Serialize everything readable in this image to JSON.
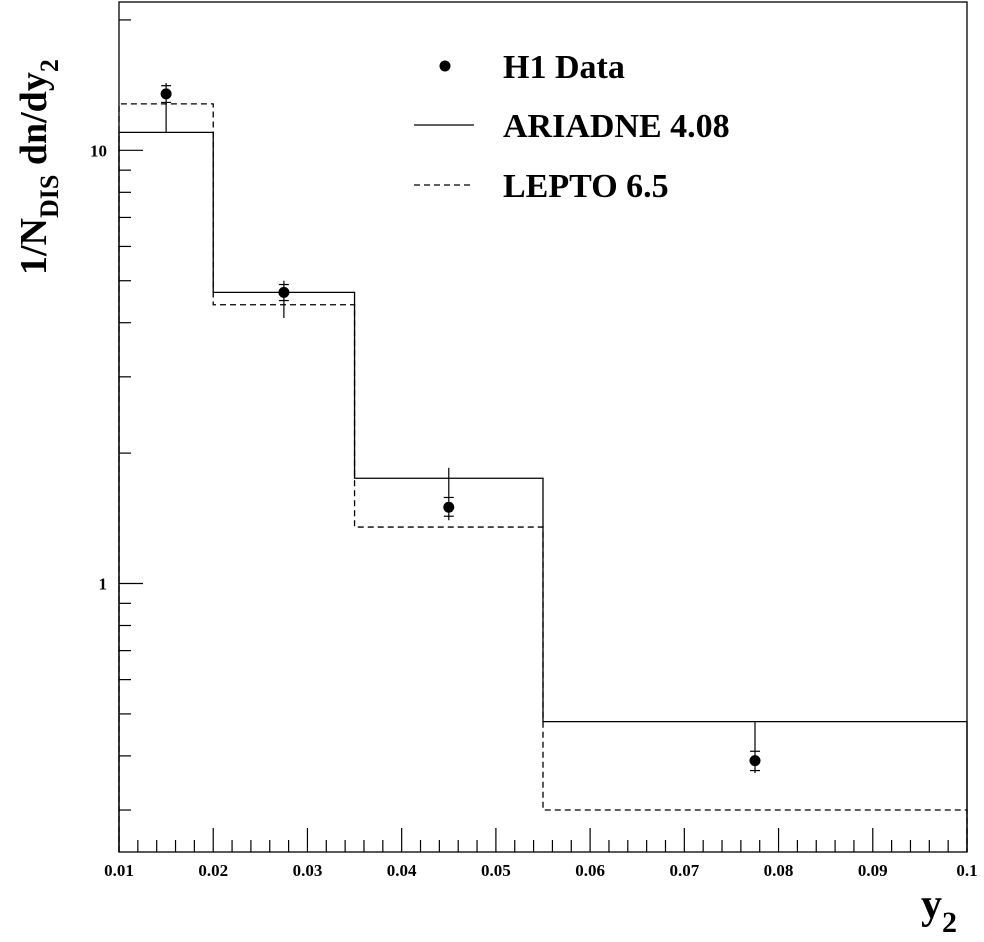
{
  "chart_data": {
    "type": "line",
    "title": "",
    "xlabel": "y",
    "xlabel_sub": "2",
    "ylabel": {
      "prefix": "1/N",
      "sub1": "DIS",
      "middle": " dn/dy",
      "sub2": "2"
    },
    "xlim": [
      0.01,
      0.1
    ],
    "ylim": [
      0.24,
      22
    ],
    "yscale": "log",
    "x_ticks": [
      0.01,
      0.02,
      0.03,
      0.04,
      0.05,
      0.06,
      0.07,
      0.08,
      0.09,
      0.1
    ],
    "x_tick_labels": [
      "0.01",
      "0.02",
      "0.03",
      "0.04",
      "0.05",
      "0.06",
      "0.07",
      "0.08",
      "0.09",
      "0.1"
    ],
    "y_tick_labels": [
      {
        "value": 10,
        "label": "10"
      },
      {
        "value": 1,
        "label": "1"
      }
    ],
    "grid": false,
    "legend_position": "top-right",
    "series": [
      {
        "name": "H1 Data",
        "style": "points",
        "x": [
          0.015,
          0.0275,
          0.045,
          0.0775
        ],
        "y": [
          13.5,
          4.7,
          1.5,
          0.39
        ],
        "err_stat_low": [
          0.6,
          0.2,
          0.07,
          0.02
        ],
        "err_stat_high": [
          0.6,
          0.2,
          0.08,
          0.02
        ],
        "err_tot_low": [
          2.5,
          0.6,
          0.1,
          0.025
        ],
        "err_tot_high": [
          0.8,
          0.3,
          0.35,
          0.09
        ]
      },
      {
        "name": "ARIADNE 4.08",
        "style": "solid-histogram",
        "bin_edges": [
          0.01,
          0.02,
          0.035,
          0.055,
          0.1
        ],
        "values": [
          11.0,
          4.7,
          1.75,
          0.48
        ]
      },
      {
        "name": "LEPTO 6.5",
        "style": "dashed-histogram",
        "bin_edges": [
          0.01,
          0.02,
          0.035,
          0.055,
          0.1
        ],
        "values": [
          12.8,
          4.4,
          1.35,
          0.3
        ]
      }
    ]
  }
}
